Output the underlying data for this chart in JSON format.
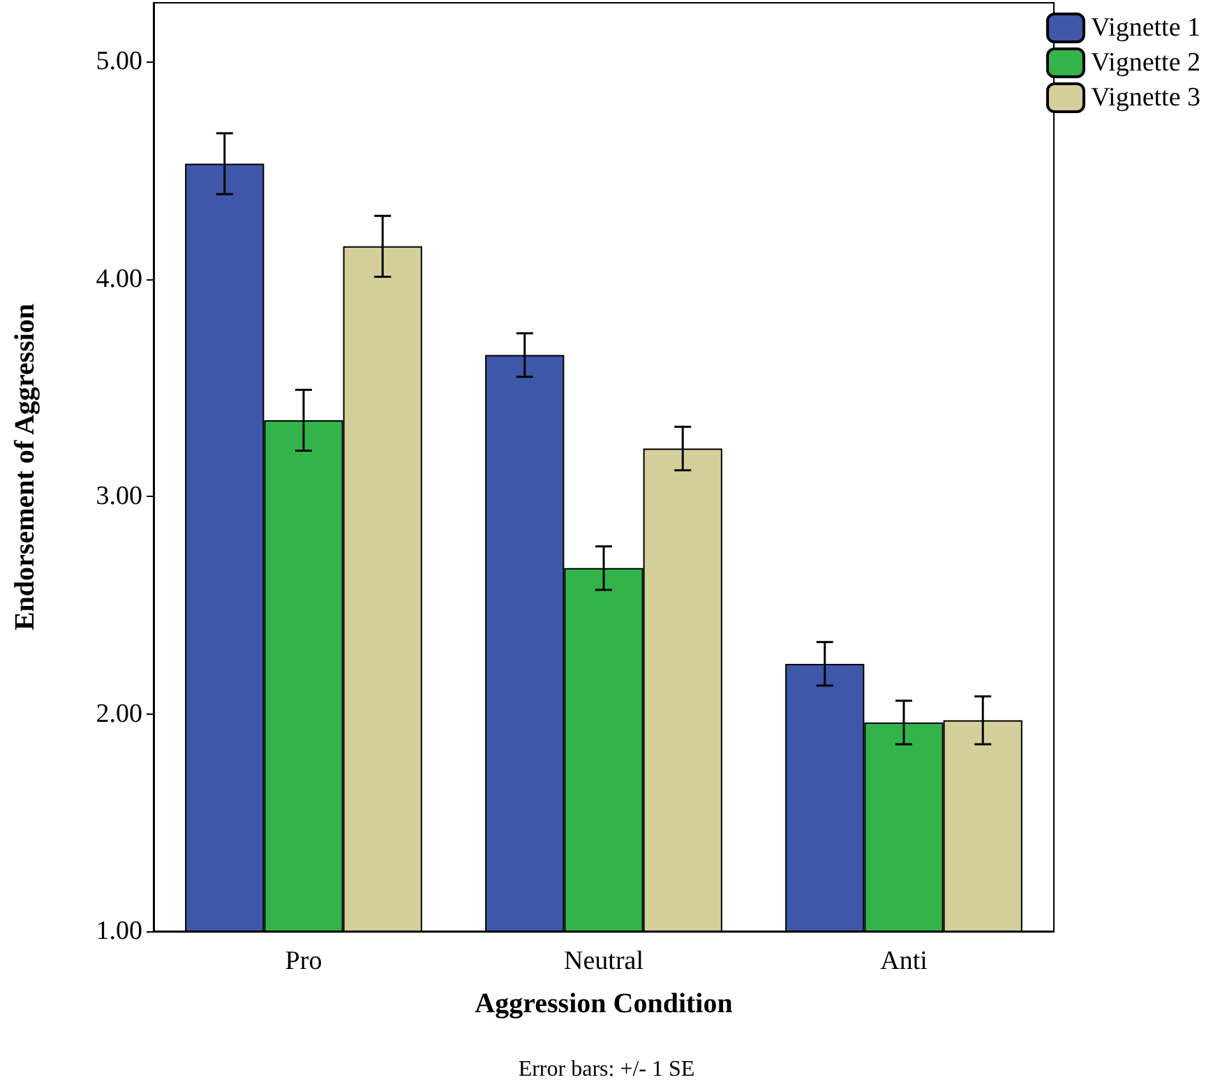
{
  "chart_data": {
    "type": "bar",
    "xlabel": "Aggression Condition",
    "ylabel": "Endorsement of Aggression",
    "categories": [
      "Pro",
      "Neutral",
      "Anti"
    ],
    "series": [
      {
        "name": "Vignette 1",
        "color": "#3f57a8",
        "values": [
          4.53,
          3.65,
          2.23
        ],
        "errors": [
          0.14,
          0.1,
          0.1
        ]
      },
      {
        "name": "Vignette 2",
        "color": "#32b44a",
        "values": [
          3.35,
          2.67,
          1.96
        ],
        "errors": [
          0.14,
          0.1,
          0.1
        ]
      },
      {
        "name": "Vignette 3",
        "color": "#d5cf9b",
        "values": [
          4.15,
          3.22,
          1.97
        ],
        "errors": [
          0.14,
          0.1,
          0.11
        ]
      }
    ],
    "ylim": [
      1,
      5.27
    ],
    "yticks": [
      {
        "value": 1,
        "label": "1.00"
      },
      {
        "value": 2,
        "label": "2.00"
      },
      {
        "value": 3,
        "label": "3.00"
      },
      {
        "value": 4,
        "label": "4.00"
      },
      {
        "value": 5,
        "label": "5.00"
      }
    ],
    "grid": false,
    "legend": "top right",
    "annotations": [
      "Error bars: +/- 1 SE"
    ]
  }
}
